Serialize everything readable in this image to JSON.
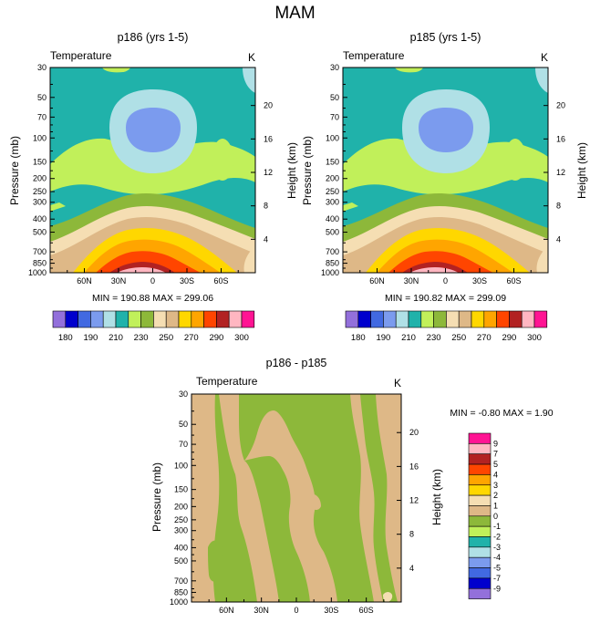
{
  "figure_title": "MAM",
  "colors": {
    "c_m9": "#9370DB",
    "c_m7": "#0000CD",
    "c_m5": "#4169E1",
    "c_m4": "#7B9BEE",
    "c_m3": "#B0E0E6",
    "c_m2": "#20B2AA",
    "c_m1": "#C1F05A",
    "c_0": "#8DB83A",
    "c_1": "#DEB887",
    "c_2": "#F5DEB3",
    "c_3": "#FFD700",
    "c_4": "#FFA500",
    "c_5": "#FF4500",
    "c_7": "#B22222",
    "c_9": "#FFB6C1",
    "c_10": "#FF1493"
  },
  "chart_data": [
    {
      "type": "heatmap",
      "title": "p186 (yrs 1-5)",
      "left_label": "Temperature",
      "right_label": "K",
      "ylabel": "Pressure (mb)",
      "ylabel_right": "Height (km)",
      "x_ticks": [
        "60N",
        "30N",
        "0",
        "30S",
        "60S"
      ],
      "x_range": [
        90,
        -90
      ],
      "y_ticks": [
        "30",
        "50",
        "70",
        "100",
        "150",
        "200",
        "250",
        "300",
        "400",
        "500",
        "700",
        "850",
        "1000"
      ],
      "y_range_mb": [
        30,
        1000
      ],
      "height_ticks": [
        "20",
        "16",
        "12",
        "8",
        "4"
      ],
      "stats": "MIN = 190.88   MAX = 299.06",
      "colorbar_labels": [
        "180",
        "190",
        "210",
        "230",
        "250",
        "270",
        "290",
        "300"
      ]
    },
    {
      "type": "heatmap",
      "title": "p185 (yrs 1-5)",
      "left_label": "Temperature",
      "right_label": "K",
      "ylabel": "Pressure (mb)",
      "ylabel_right": "Height (km)",
      "x_ticks": [
        "60N",
        "30N",
        "0",
        "30S",
        "60S"
      ],
      "x_range": [
        90,
        -90
      ],
      "y_ticks": [
        "30",
        "50",
        "70",
        "100",
        "150",
        "200",
        "250",
        "300",
        "400",
        "500",
        "700",
        "850",
        "1000"
      ],
      "y_range_mb": [
        30,
        1000
      ],
      "height_ticks": [
        "20",
        "16",
        "12",
        "8",
        "4"
      ],
      "stats": "MIN = 190.82   MAX = 299.09",
      "colorbar_labels": [
        "180",
        "190",
        "210",
        "230",
        "250",
        "270",
        "290",
        "300"
      ]
    },
    {
      "type": "heatmap",
      "title": "p186 - p185",
      "left_label": "Temperature",
      "right_label": "K",
      "ylabel": "Pressure (mb)",
      "ylabel_right": "Height (km)",
      "x_ticks": [
        "60N",
        "30N",
        "0",
        "30S",
        "60S"
      ],
      "x_range": [
        90,
        -90
      ],
      "y_ticks": [
        "30",
        "50",
        "70",
        "100",
        "150",
        "200",
        "250",
        "300",
        "400",
        "500",
        "700",
        "850",
        "1000"
      ],
      "y_range_mb": [
        30,
        1000
      ],
      "height_ticks": [
        "20",
        "16",
        "12",
        "8",
        "4"
      ],
      "stats": "MIN =  -0.80   MAX =   1.90",
      "colorbar_labels": [
        "9",
        "7",
        "5",
        "4",
        "3",
        "2",
        "1",
        "0",
        "-1",
        "-2",
        "-3",
        "-4",
        "-5",
        "-7",
        "-9"
      ]
    }
  ]
}
